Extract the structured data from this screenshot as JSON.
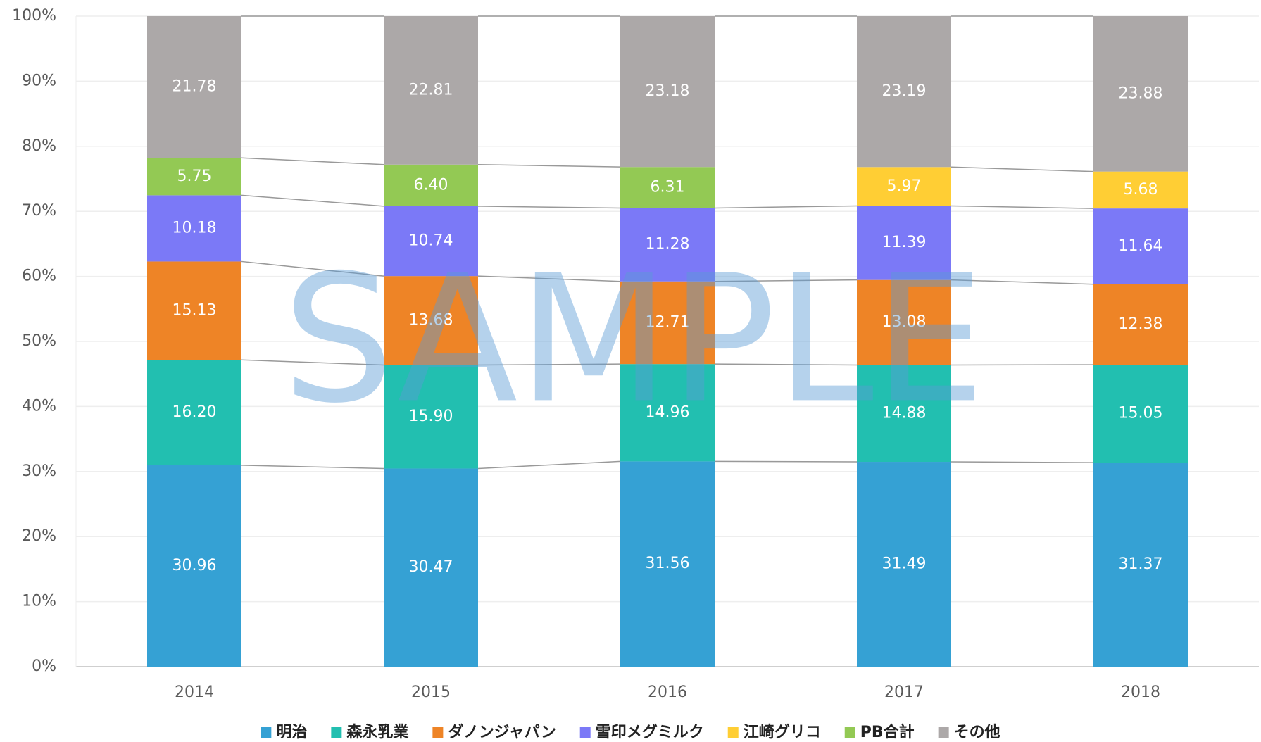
{
  "chart_data": {
    "type": "stacked_bar",
    "watermark": "SAMPLE",
    "categories": [
      "2014",
      "2015",
      "2016",
      "2017",
      "2018"
    ],
    "ylim": [
      0,
      100
    ],
    "yticks": [
      {
        "value": 0,
        "label": "0%"
      },
      {
        "value": 10,
        "label": "10%"
      },
      {
        "value": 20,
        "label": "20%"
      },
      {
        "value": 30,
        "label": "30%"
      },
      {
        "value": 40,
        "label": "40%"
      },
      {
        "value": 50,
        "label": "50%"
      },
      {
        "value": 60,
        "label": "60%"
      },
      {
        "value": 70,
        "label": "70%"
      },
      {
        "value": 80,
        "label": "80%"
      },
      {
        "value": 90,
        "label": "90%"
      },
      {
        "value": 100,
        "label": "100%"
      }
    ],
    "grid": true,
    "legend": "bottom",
    "series": [
      {
        "name": "明治",
        "color": "#35a1d4",
        "values": [
          30.96,
          30.47,
          31.56,
          31.49,
          31.37
        ],
        "value_labels": [
          "30.96",
          "30.47",
          "31.56",
          "31.49",
          "31.37"
        ]
      },
      {
        "name": "森永乳業",
        "color": "#22bfb0",
        "values": [
          16.2,
          15.9,
          14.96,
          14.88,
          15.05
        ],
        "value_labels": [
          "16.20",
          "15.90",
          "14.96",
          "14.88",
          "15.05"
        ]
      },
      {
        "name": "ダノンジャパン",
        "color": "#ee8426",
        "values": [
          15.13,
          13.68,
          12.71,
          13.08,
          12.38
        ],
        "value_labels": [
          "15.13",
          "13.68",
          "12.71",
          "13.08",
          "12.38"
        ]
      },
      {
        "name": "雪印メグミルク",
        "color": "#7b79f7",
        "values": [
          10.18,
          10.74,
          11.28,
          11.39,
          11.64
        ],
        "value_labels": [
          "10.18",
          "10.74",
          "11.28",
          "11.39",
          "11.64"
        ]
      },
      {
        "name": "江崎グリコ",
        "color": "#ffce34",
        "values": [
          null,
          null,
          null,
          5.97,
          5.68
        ],
        "value_labels": [
          null,
          null,
          null,
          "5.97",
          "5.68"
        ]
      },
      {
        "name": "PB合計",
        "color": "#93c954",
        "values": [
          5.75,
          6.4,
          6.31,
          null,
          null
        ],
        "value_labels": [
          "5.75",
          "6.40",
          "6.31",
          null,
          null
        ]
      },
      {
        "name": "その他",
        "color": "#aca8a8",
        "values": [
          21.78,
          22.81,
          23.18,
          23.19,
          23.88
        ],
        "value_labels": [
          "21.78",
          "22.81",
          "23.18",
          "23.19",
          "23.88"
        ]
      }
    ]
  }
}
